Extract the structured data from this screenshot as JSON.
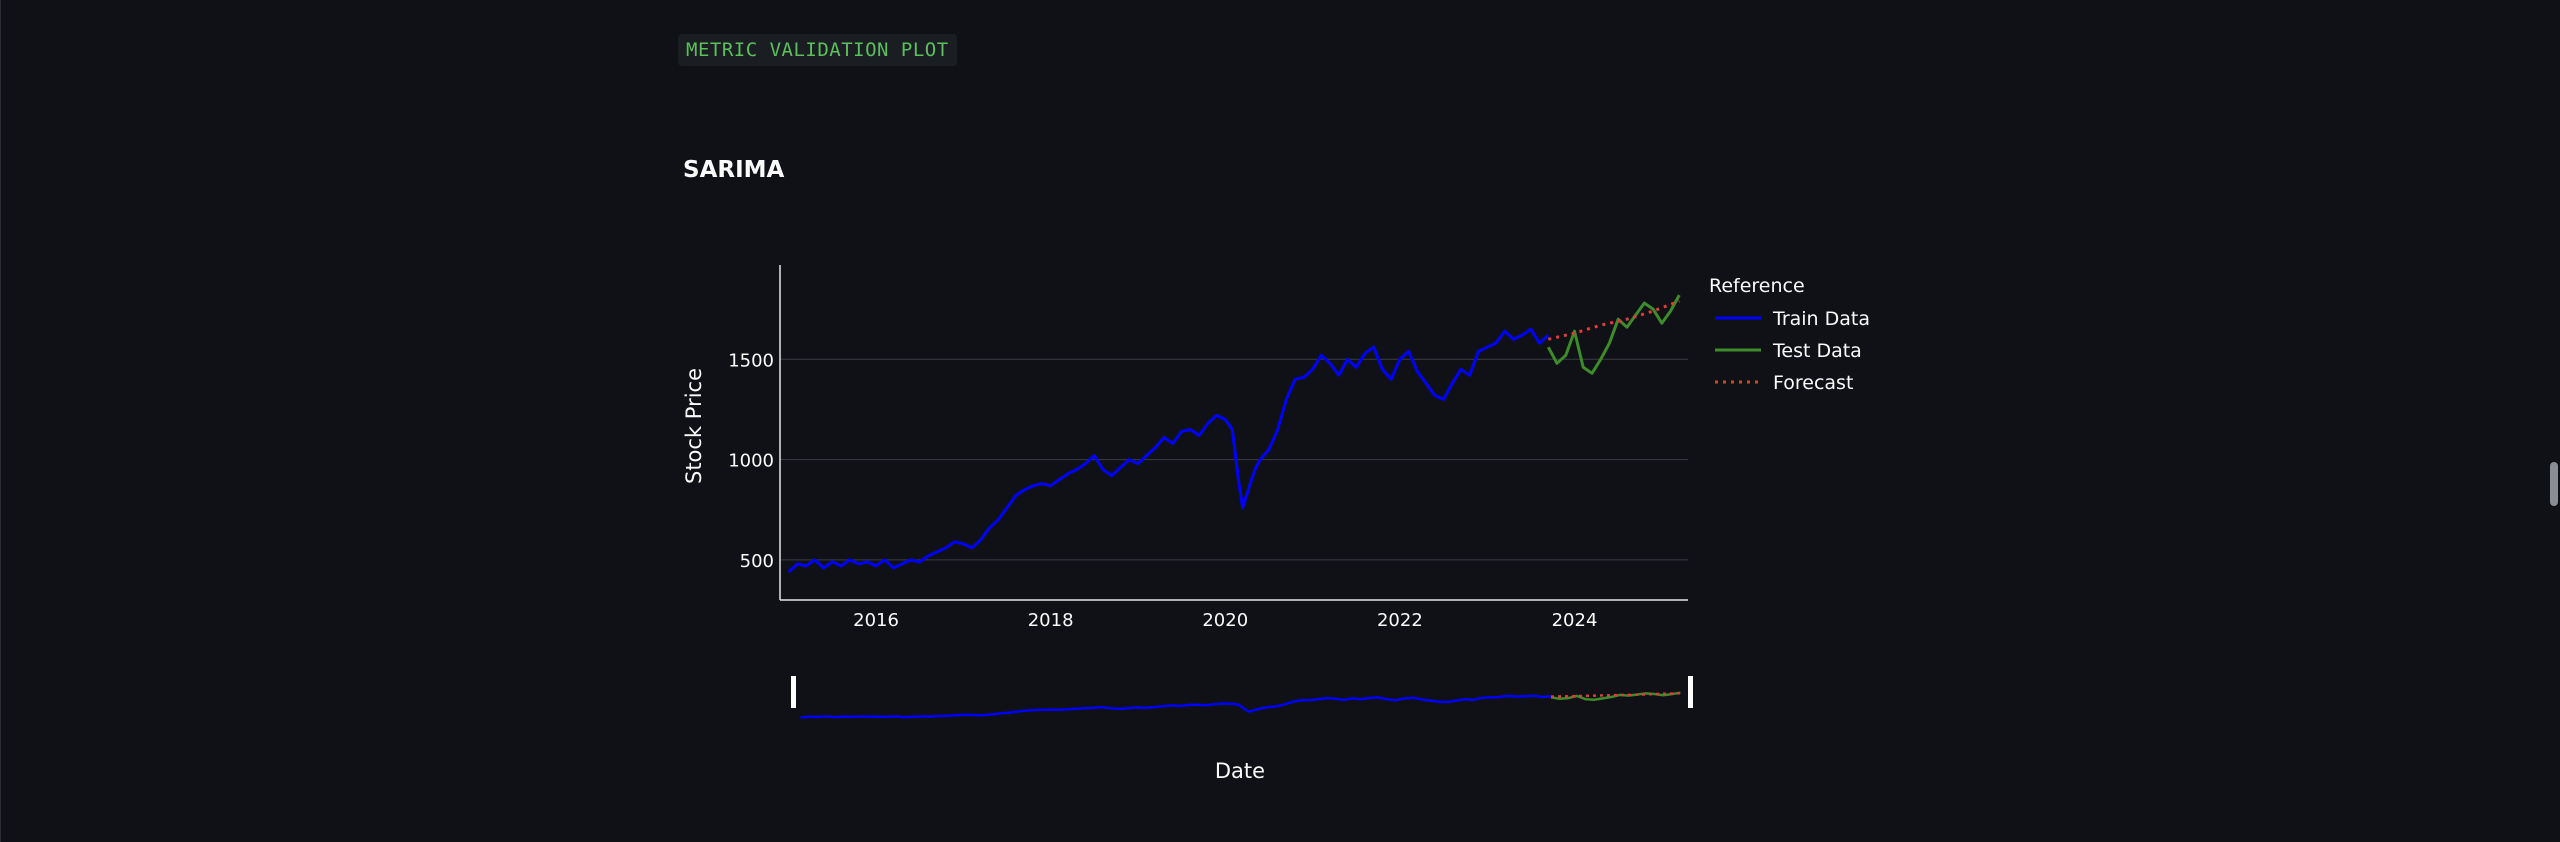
{
  "code_label": "METRIC VALIDATION PLOT",
  "section_title": "SARIMA",
  "chart_data": {
    "type": "line",
    "title": "",
    "xlabel": "Date",
    "ylabel": "Stock Price",
    "xlim": [
      2014.9,
      2025.3
    ],
    "ylim": [
      300,
      1970
    ],
    "x_ticks": [
      2016,
      2018,
      2020,
      2022,
      2024
    ],
    "x_tick_labels": [
      "2016",
      "2018",
      "2020",
      "2022",
      "2024"
    ],
    "y_ticks": [
      500,
      1000,
      1500
    ],
    "y_tick_labels": [
      "500",
      "1000",
      "1500"
    ],
    "grid": "horizontal",
    "legend_title": "Reference",
    "legend_position": "right",
    "range_slider": true,
    "series": [
      {
        "name": "Train Data",
        "color": "#0000ff",
        "dash": "solid",
        "x": [
          2015.0,
          2015.1,
          2015.2,
          2015.3,
          2015.4,
          2015.5,
          2015.6,
          2015.7,
          2015.8,
          2015.9,
          2016.0,
          2016.1,
          2016.2,
          2016.3,
          2016.4,
          2016.5,
          2016.6,
          2016.7,
          2016.8,
          2016.9,
          2017.0,
          2017.1,
          2017.2,
          2017.3,
          2017.4,
          2017.5,
          2017.6,
          2017.7,
          2017.8,
          2017.9,
          2018.0,
          2018.1,
          2018.2,
          2018.3,
          2018.4,
          2018.5,
          2018.6,
          2018.7,
          2018.8,
          2018.9,
          2019.0,
          2019.1,
          2019.2,
          2019.3,
          2019.4,
          2019.5,
          2019.6,
          2019.7,
          2019.8,
          2019.9,
          2020.0,
          2020.08,
          2020.15,
          2020.2,
          2020.25,
          2020.3,
          2020.35,
          2020.4,
          2020.5,
          2020.6,
          2020.7,
          2020.8,
          2020.9,
          2021.0,
          2021.1,
          2021.2,
          2021.3,
          2021.4,
          2021.5,
          2021.6,
          2021.7,
          2021.8,
          2021.9,
          2022.0,
          2022.1,
          2022.2,
          2022.3,
          2022.4,
          2022.5,
          2022.6,
          2022.7,
          2022.8,
          2022.9,
          2023.0,
          2023.1,
          2023.2,
          2023.3,
          2023.4,
          2023.5,
          2023.6,
          2023.7
        ],
        "y": [
          440,
          480,
          470,
          500,
          460,
          490,
          470,
          500,
          480,
          490,
          470,
          500,
          460,
          480,
          500,
          490,
          520,
          540,
          560,
          590,
          580,
          560,
          600,
          660,
          700,
          760,
          820,
          850,
          870,
          880,
          870,
          900,
          930,
          950,
          980,
          1020,
          950,
          920,
          960,
          1000,
          980,
          1020,
          1060,
          1110,
          1080,
          1140,
          1150,
          1120,
          1180,
          1220,
          1200,
          1150,
          900,
          760,
          830,
          900,
          960,
          1000,
          1050,
          1150,
          1300,
          1400,
          1410,
          1450,
          1520,
          1480,
          1420,
          1500,
          1460,
          1530,
          1560,
          1450,
          1400,
          1500,
          1540,
          1440,
          1380,
          1320,
          1300,
          1380,
          1450,
          1420,
          1540,
          1560,
          1580,
          1640,
          1600,
          1620,
          1650,
          1580,
          1620
        ]
      },
      {
        "name": "Test Data",
        "color": "#3c8c2a",
        "dash": "solid",
        "x": [
          2023.7,
          2023.8,
          2023.9,
          2024.0,
          2024.1,
          2024.2,
          2024.3,
          2024.4,
          2024.5,
          2024.6,
          2024.7,
          2024.8,
          2024.9,
          2025.0,
          2025.1,
          2025.2
        ],
        "y": [
          1560,
          1480,
          1520,
          1640,
          1460,
          1430,
          1500,
          1580,
          1700,
          1660,
          1720,
          1780,
          1750,
          1680,
          1740,
          1820
        ]
      },
      {
        "name": "Forecast",
        "color": "#e03c3c",
        "dash": "dot",
        "x": [
          2023.7,
          2024.0,
          2024.3,
          2024.6,
          2024.9,
          2025.2
        ],
        "y": [
          1600,
          1630,
          1670,
          1700,
          1740,
          1790
        ]
      }
    ]
  }
}
